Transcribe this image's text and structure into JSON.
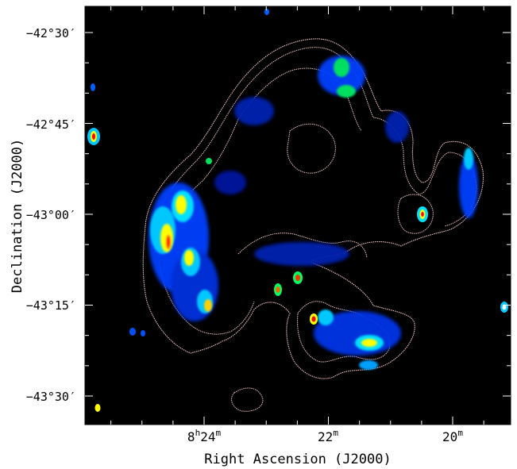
{
  "figure": {
    "xlabel": "Right Ascension (J2000)",
    "ylabel": "Declination (J2000)",
    "y_ticks": [
      {
        "deg": "−42",
        "min": "30",
        "value": -42.5
      },
      {
        "deg": "−42",
        "min": "45",
        "value": -42.75
      },
      {
        "deg": "−43",
        "min": "00",
        "value": -43.0
      },
      {
        "deg": "−43",
        "min": "15",
        "value": -43.25
      },
      {
        "deg": "−43",
        "min": "30",
        "value": -43.5
      }
    ],
    "x_ticks": [
      {
        "main": "8",
        "sup1": "h",
        "mid": "24",
        "sup2": "m",
        "value_min": 24
      },
      {
        "main": "22",
        "sup1": "m",
        "mid": "",
        "sup2": "",
        "value_min": 22
      },
      {
        "main": "20",
        "sup1": "m",
        "mid": "",
        "sup2": "",
        "value_min": 20
      }
    ],
    "colors": {
      "background": "#000000",
      "contour": "#f4c6c6",
      "colormap": [
        "#00008b",
        "#0050ff",
        "#00c8ff",
        "#00ff60",
        "#ffff00",
        "#ff6000",
        "#ff0000"
      ]
    },
    "colorscale": "rainbow",
    "image_type": "radio continuum map with overlaid contours"
  }
}
